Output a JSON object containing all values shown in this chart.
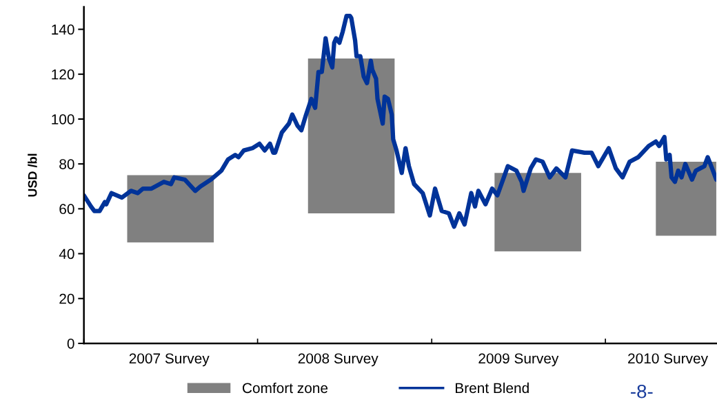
{
  "chart_data": {
    "type": "line",
    "ylabel": "USD /bl",
    "xlim": [
      "2007-01-01",
      "2010-08-22"
    ],
    "ylim": [
      0,
      150
    ],
    "xticks": [
      {
        "value": "2007-01-01",
        "label": null
      },
      {
        "value": "2008-01-01",
        "label": null
      },
      {
        "value": "2009-01-01",
        "label": null
      },
      {
        "value": "2010-01-01",
        "label": null
      },
      {
        "value": "2007-06-29",
        "label": "2007 Survey"
      },
      {
        "value": "2008-06-18",
        "label": "2008 Survey"
      },
      {
        "value": "2009-07-02",
        "label": "2009 Survey"
      },
      {
        "value": "2010-05-12",
        "label": "2010 Survey"
      }
    ],
    "yticks": [
      0,
      20,
      40,
      60,
      80,
      100,
      120,
      140
    ],
    "series": [
      {
        "name": "Comfort zone",
        "type": "bar",
        "color": "#808080",
        "x": [
          "2007-07-02",
          "2008-07-16",
          "2009-08-12",
          "2010-07-17"
        ],
        "base": [
          45,
          58,
          41,
          48
        ],
        "values": [
          30,
          69,
          35,
          33
        ]
      },
      {
        "name": "Brent Blend",
        "color": "#003399",
        "x": [
          "2007-01-01",
          "2007-01-16",
          "2007-01-23",
          "2007-02-03",
          "2007-02-14",
          "2007-02-17",
          "2007-02-28",
          "2007-03-22",
          "2007-04-10",
          "2007-04-24",
          "2007-05-05",
          "2007-05-23",
          "2007-06-18",
          "2007-07-03",
          "2007-07-10",
          "2007-08-01",
          "2007-08-23",
          "2007-09-03",
          "2007-09-25",
          "2007-10-17",
          "2007-10-31",
          "2007-11-15",
          "2007-11-22",
          "2007-12-03",
          "2007-12-21",
          "2008-01-05",
          "2008-01-16",
          "2008-01-27",
          "2008-02-03",
          "2008-02-07",
          "2008-02-21",
          "2008-03-07",
          "2008-03-14",
          "2008-03-25",
          "2008-04-02",
          "2008-04-12",
          "2008-04-23",
          "2008-05-01",
          "2008-05-08",
          "2008-05-15",
          "2008-05-23",
          "2008-05-30",
          "2008-06-06",
          "2008-06-10",
          "2008-06-14",
          "2008-06-21",
          "2008-06-28",
          "2008-07-06",
          "2008-07-13",
          "2008-07-16",
          "2008-07-24",
          "2008-07-27",
          "2008-08-04",
          "2008-08-11",
          "2008-08-18",
          "2008-08-26",
          "2008-08-29",
          "2008-09-06",
          "2008-09-09",
          "2008-09-20",
          "2008-09-24",
          "2008-10-01",
          "2008-10-09",
          "2008-10-12",
          "2008-10-19",
          "2008-10-30",
          "2008-11-07",
          "2008-11-14",
          "2008-11-25",
          "2008-12-13",
          "2008-12-28",
          "2009-01-08",
          "2009-01-22",
          "2009-02-06",
          "2009-02-17",
          "2009-02-28",
          "2009-03-11",
          "2009-03-25",
          "2009-04-02",
          "2009-04-09",
          "2009-04-24",
          "2009-05-08",
          "2009-05-19",
          "2009-06-10",
          "2009-06-28",
          "2009-07-09",
          "2009-07-13",
          "2009-07-28",
          "2009-08-08",
          "2009-08-22",
          "2009-09-06",
          "2009-09-20",
          "2009-10-09",
          "2009-10-16",
          "2009-10-23",
          "2009-11-18",
          "2009-12-03",
          "2009-12-17",
          "2010-01-08",
          "2010-01-23",
          "2010-02-06",
          "2010-02-21",
          "2010-03-11",
          "2010-04-02",
          "2010-04-17",
          "2010-04-24",
          "2010-05-05",
          "2010-05-09",
          "2010-05-16",
          "2010-05-20",
          "2010-05-27",
          "2010-06-03",
          "2010-06-10",
          "2010-06-18",
          "2010-07-02",
          "2010-07-10",
          "2010-07-28",
          "2010-08-04",
          "2010-08-15",
          "2010-08-22"
        ],
        "values": [
          66,
          61,
          59,
          59,
          63,
          62,
          67,
          65,
          68,
          67,
          69,
          69,
          72,
          71,
          74,
          73,
          68,
          70,
          73,
          77,
          82,
          84,
          83,
          86,
          87,
          89,
          86,
          89,
          85,
          85,
          94,
          98,
          102,
          97,
          95,
          102,
          109,
          105,
          121,
          121,
          136,
          127,
          123,
          134,
          136,
          134,
          139,
          146,
          146,
          145,
          135,
          128,
          128,
          119,
          116,
          126,
          122,
          118,
          109,
          98,
          110,
          109,
          102,
          91,
          86,
          76,
          87,
          79,
          71,
          67,
          57,
          69,
          59,
          58,
          52,
          58,
          53,
          67,
          61,
          68,
          62,
          69,
          66,
          79,
          77,
          72,
          68,
          78,
          82,
          81,
          74,
          78,
          74,
          80,
          86,
          85,
          85,
          79,
          87,
          78,
          74,
          81,
          83,
          88,
          90,
          88,
          92,
          82,
          84,
          74,
          72,
          77,
          74,
          80,
          73,
          77,
          79,
          83,
          77,
          73
        ]
      }
    ],
    "legend": "bottom",
    "annotations": [
      "-8-"
    ]
  }
}
